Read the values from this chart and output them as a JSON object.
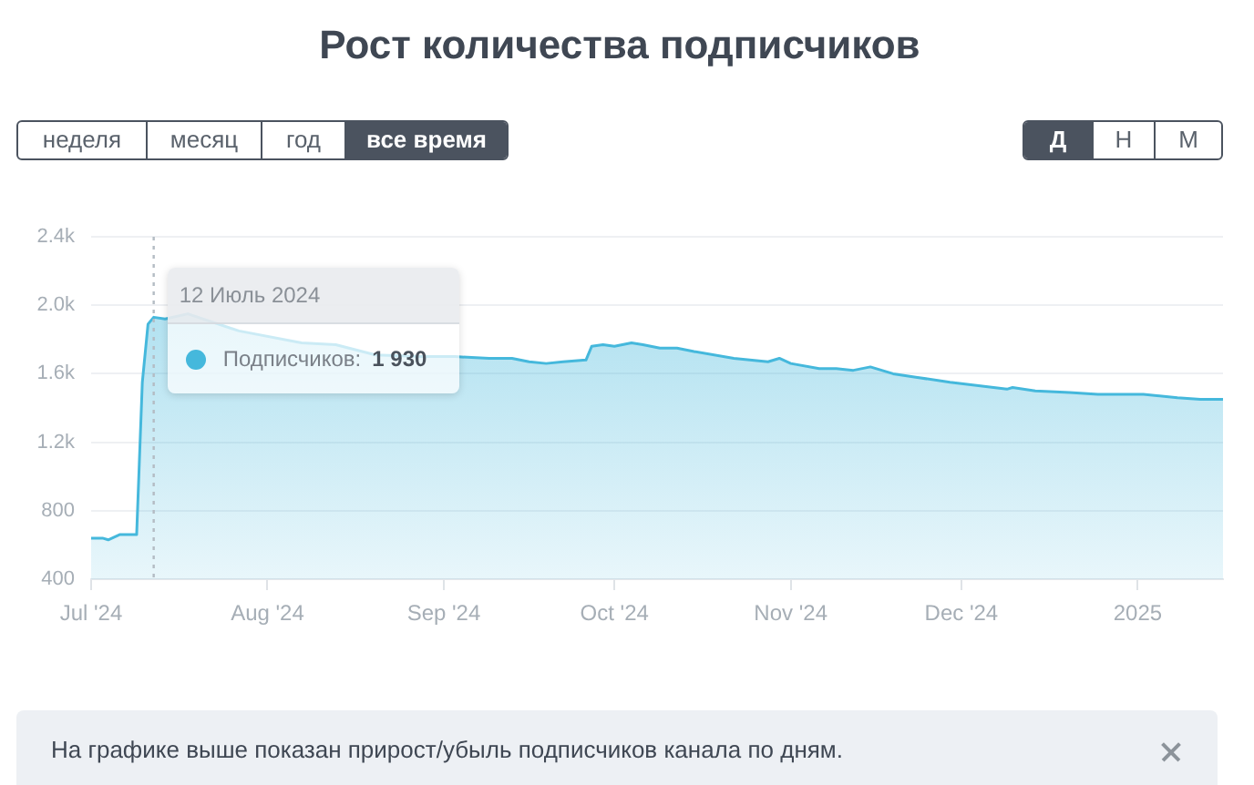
{
  "chart_data": {
    "type": "area",
    "title": "Рост количества подписчиков",
    "annotations": [
      "неделя",
      "месяц",
      "год",
      "все время",
      "Д",
      "Н",
      "М",
      {
        "text": "12 Июль 2024",
        "x": "2024-07-12",
        "y": 1930
      },
      "Подписчиков: 1 930",
      "На графике выше показан прирост/убыль подписчиков канала по дням."
    ],
    "x": [
      "2024-07-01",
      "2024-07-03",
      "2024-07-04",
      "2024-07-06",
      "2024-07-09",
      "2024-07-10",
      "2024-07-11",
      "2024-07-12",
      "2024-07-14",
      "2024-07-18",
      "2024-07-27",
      "2024-08-07",
      "2024-08-13",
      "2024-08-20",
      "2024-08-28",
      "2024-09-03",
      "2024-09-09",
      "2024-09-13",
      "2024-09-16",
      "2024-09-19",
      "2024-09-22",
      "2024-09-26",
      "2024-09-27",
      "2024-09-29",
      "2024-10-01",
      "2024-10-04",
      "2024-10-06",
      "2024-10-09",
      "2024-10-12",
      "2024-10-15",
      "2024-10-22",
      "2024-10-28",
      "2024-10-30",
      "2024-11-01",
      "2024-11-06",
      "2024-11-09",
      "2024-11-12",
      "2024-11-15",
      "2024-11-19",
      "2024-11-23",
      "2024-11-29",
      "2024-12-04",
      "2024-12-09",
      "2024-12-10",
      "2024-12-14",
      "2024-12-20",
      "2024-12-25",
      "2025-01-02",
      "2025-01-08",
      "2025-01-12",
      "2025-01-16"
    ],
    "values": [
      640,
      640,
      630,
      660,
      660,
      1550,
      1890,
      1930,
      1920,
      1950,
      1850,
      1780,
      1770,
      1710,
      1700,
      1700,
      1690,
      1690,
      1670,
      1660,
      1670,
      1680,
      1760,
      1770,
      1760,
      1780,
      1770,
      1750,
      1750,
      1730,
      1690,
      1670,
      1690,
      1660,
      1630,
      1630,
      1620,
      1640,
      1600,
      1580,
      1550,
      1530,
      1510,
      1520,
      1500,
      1490,
      1480,
      1480,
      1460,
      1450,
      1450
    ],
    "color": "#45b8dc",
    "xlim": [
      "2024-07-01",
      "2025-01-16"
    ],
    "xticks": [
      {
        "value": "2024-07-01",
        "label": "Jul '24"
      },
      {
        "value": "2024-08-01",
        "label": "Aug '24"
      },
      {
        "value": "2024-09-01",
        "label": "Sep '24"
      },
      {
        "value": "2024-10-01",
        "label": "Oct '24"
      },
      {
        "value": "2024-11-01",
        "label": "Nov '24"
      },
      {
        "value": "2024-12-01",
        "label": "Dec '24"
      },
      {
        "value": "2025-01-01",
        "label": "2025"
      }
    ],
    "ylim": [
      400,
      2400
    ],
    "yticks": [
      400,
      800,
      {
        "value": 1200,
        "label": "1.2k"
      },
      {
        "value": 1600,
        "label": "1.6k"
      },
      {
        "value": 2000,
        "label": "2.0k"
      },
      {
        "value": 2400,
        "label": "2.4k"
      }
    ],
    "grid": "y",
    "ref_lines": [
      {
        "axis": "x",
        "value": "2024-07-12",
        "color": "#b4bcc4",
        "line_style": "dotted"
      }
    ]
  }
}
